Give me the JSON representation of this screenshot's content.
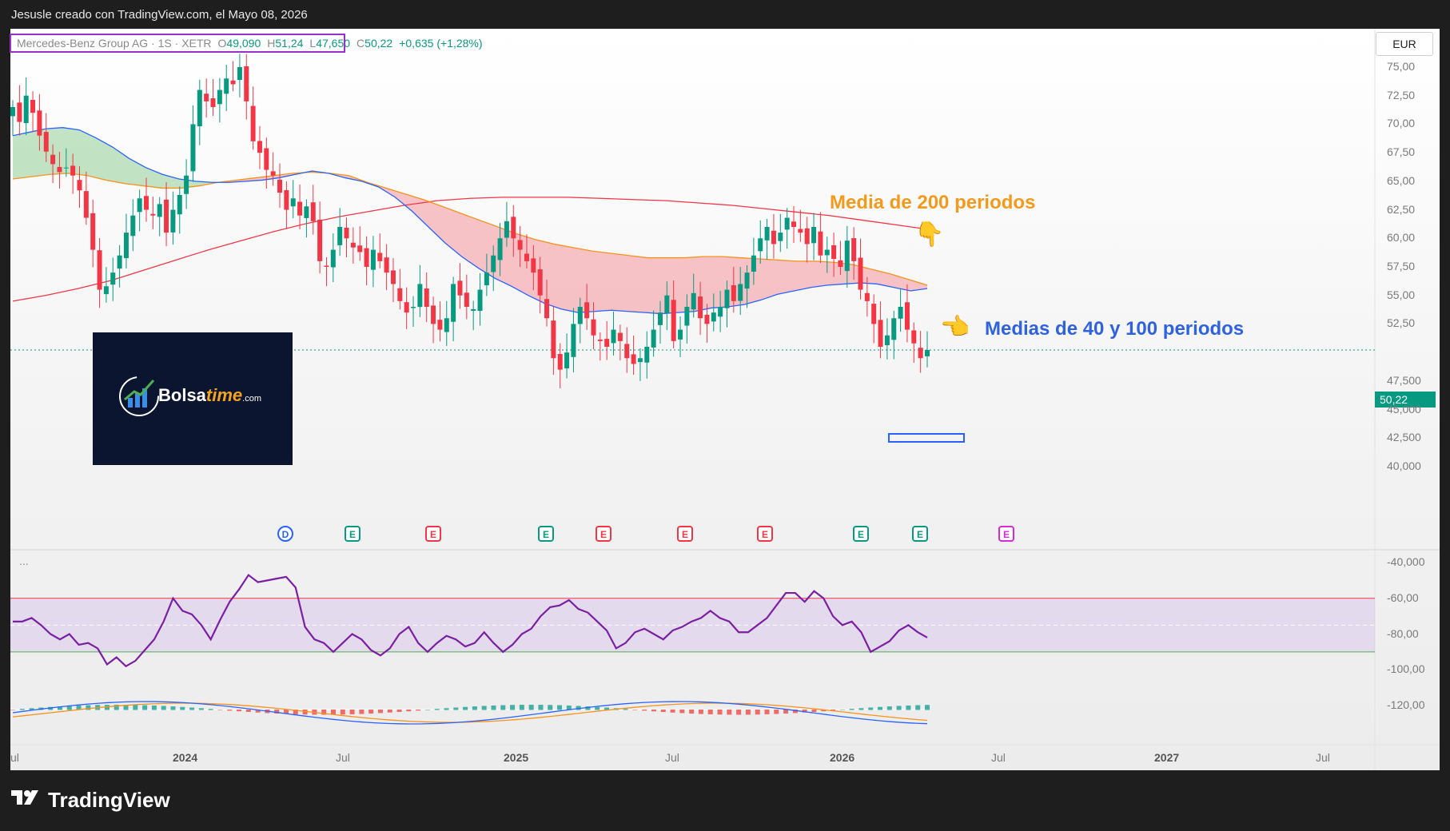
{
  "header": {
    "title": "Jesusle creado con TradingView.com, el Mayo 08, 2026"
  },
  "legend": {
    "symbol": "Mercedes-Benz Group AG · 1S · XETR",
    "open_label": "O",
    "open": "49,090",
    "high_label": "H",
    "high": "51,24",
    "low_label": "L",
    "low": "47,650",
    "close_label": "C",
    "close": "50,22",
    "change": "+0,635 (+1,28%)"
  },
  "currency": "EUR",
  "last_price": "50,22",
  "price_axis": [
    "75,00",
    "72,50",
    "70,00",
    "67,50",
    "65,00",
    "62,50",
    "60,00",
    "57,50",
    "55,00",
    "52,50",
    "47,500",
    "45,000",
    "42,500",
    "40,000"
  ],
  "rsi_axis": [
    "-40,000",
    "-60,00",
    "-80,00",
    "-100,00",
    "-120,00"
  ],
  "time_axis": [
    "ul",
    "2024",
    "Jul",
    "2025",
    "Jul",
    "2026",
    "Jul",
    "2027",
    "Jul"
  ],
  "annotations": {
    "ma200": "Media de 200 periodos",
    "ma40_100": "Medias de 40 y 100 periodos"
  },
  "brand": {
    "name_bold": "Bolsa",
    "name_italic": "time",
    "suffix": ".com"
  },
  "footer": {
    "brand": "TradingView"
  },
  "rsi_label": "...",
  "events": [
    {
      "letter": "D",
      "color": "#2962ff"
    },
    {
      "letter": "E",
      "color": "#089981"
    },
    {
      "letter": "E",
      "color": "#f23645"
    },
    {
      "letter": "E",
      "color": "#089981"
    },
    {
      "letter": "E",
      "color": "#f23645"
    },
    {
      "letter": "E",
      "color": "#f23645"
    },
    {
      "letter": "E",
      "color": "#f23645"
    },
    {
      "letter": "E",
      "color": "#089981"
    },
    {
      "letter": "E",
      "color": "#089981"
    },
    {
      "letter": "E",
      "color": "#d62ad6"
    }
  ],
  "colors": {
    "up": "#089981",
    "down": "#f23645",
    "ma40": "#2962ff",
    "ma100": "#f7931a",
    "ma200": "#f23645",
    "rsi": "#7b1fa2"
  },
  "chart_data": {
    "type": "candlestick",
    "symbol": "Mercedes-Benz Group AG",
    "interval": "1S",
    "ylim": [
      40,
      77
    ],
    "x_start": "2023-06",
    "x_end": "2026-05",
    "close_series": [
      71.5,
      70.2,
      72.5,
      71,
      69,
      67.6,
      66.5,
      65.8,
      66.2,
      65.5,
      64.2,
      61.8,
      59,
      55.5,
      55.8,
      57,
      58.5,
      60.5,
      62,
      63.5,
      62.5,
      62,
      63,
      60.5,
      62.5,
      63.8,
      65.5,
      70,
      73,
      72,
      71.5,
      73,
      74,
      73.5,
      75,
      72,
      68.5,
      67.5,
      66,
      65.5,
      64,
      62.5,
      63.5,
      62,
      62.8,
      61.5,
      58,
      57.5,
      59,
      61,
      60,
      59.2,
      58.8,
      57.5,
      59,
      58,
      57,
      56,
      54.5,
      53.5,
      54,
      56,
      54,
      52.5,
      52,
      53,
      56,
      55,
      54,
      53.8,
      55.5,
      57,
      58.5,
      60,
      61.5,
      60,
      59,
      58,
      57,
      55,
      53,
      49.5,
      48.5,
      50,
      52.5,
      54,
      53,
      51.5,
      51,
      50.5,
      52,
      51,
      49.5,
      49,
      49.5,
      50.5,
      52,
      53.5,
      55,
      51,
      52,
      54,
      55.2,
      53,
      52.5,
      53.5,
      54,
      55.5,
      54.5,
      56,
      57,
      58.5,
      60,
      61,
      59.5,
      60.5,
      61.8,
      61,
      60.5,
      59.5,
      61,
      58.5,
      59,
      58.2,
      57.5,
      59.8,
      58,
      55.5,
      54.5,
      52.5,
      50.5,
      51.5,
      53,
      54,
      52,
      50.8,
      49.5,
      50.22
    ],
    "ma40_series": [
      69,
      69.3,
      69.6,
      69.7,
      69.5,
      68.8,
      68,
      67,
      66.2,
      65.6,
      65.2,
      65,
      64.9,
      64.9,
      65,
      65.1,
      65.3,
      65.6,
      65.9,
      65.7,
      65.3,
      65,
      64.5,
      63.6,
      62.4,
      61,
      59.6,
      58.4,
      57.4,
      56.5,
      55.8,
      55,
      54.3,
      53.8,
      53.5,
      53.6,
      53.7,
      53.6,
      53.5,
      53.4,
      53.5,
      53.6,
      53.9,
      54,
      54.2,
      54.6,
      55.1,
      55.4,
      55.7,
      55.9,
      56,
      56.1,
      56,
      55.7,
      55.4,
      55.6
    ],
    "ma100_series": [
      65.2,
      65.4,
      65.6,
      65.7,
      65.5,
      65.1,
      64.8,
      64.6,
      64.4,
      64.4,
      64.6,
      64.9,
      65.1,
      65.3,
      65.5,
      65.7,
      65.8,
      65.7,
      65.5,
      64.9,
      64.4,
      63.9,
      63.4,
      62.8,
      62.2,
      61.6,
      61,
      60.4,
      59.9,
      59.5,
      59.2,
      58.9,
      58.7,
      58.5,
      58.3,
      58.3,
      58.3,
      58.4,
      58.4,
      58.3,
      58.2,
      58.1,
      58,
      58,
      57.9,
      57.7,
      57.3,
      56.9,
      56.4,
      55.9
    ],
    "ma200_series": [
      54.5,
      55,
      55.6,
      56.3,
      57.2,
      58.1,
      59,
      59.8,
      60.6,
      61.3,
      61.9,
      62.4,
      62.9,
      63.3,
      63.5,
      63.6,
      63.6,
      63.6,
      63.5,
      63.4,
      63.3,
      63.1,
      62.9,
      62.6,
      62.3,
      62,
      61.6,
      61.2,
      60.8
    ],
    "rsi_series": [
      -73,
      -73,
      -71,
      -75,
      -80,
      -83,
      -80,
      -86,
      -85,
      -88,
      -97,
      -93,
      -98,
      -95,
      -89,
      -83,
      -73,
      -60,
      -67,
      -69,
      -75,
      -83,
      -72,
      -62,
      -55,
      -47,
      -51,
      -50,
      -49,
      -48,
      -54,
      -76,
      -83,
      -85,
      -90,
      -85,
      -80,
      -83,
      -89,
      -92,
      -88,
      -80,
      -76,
      -85,
      -90,
      -85,
      -81,
      -83,
      -87,
      -85,
      -79,
      -85,
      -90,
      -86,
      -80,
      -77,
      -70,
      -65,
      -64,
      -61,
      -66,
      -68,
      -73,
      -78,
      -88,
      -85,
      -79,
      -77,
      -80,
      -83,
      -78,
      -76,
      -73,
      -71,
      -67,
      -71,
      -73,
      -79,
      -79,
      -75,
      -71,
      -64,
      -57,
      -57,
      -62,
      -56,
      -60,
      -70,
      -75,
      -73,
      -79,
      -90,
      -87,
      -84,
      -78,
      -75,
      -79,
      -82
    ],
    "rsi_band": [
      -60,
      -90
    ],
    "rsi_ylim": [
      -130,
      -38
    ]
  }
}
